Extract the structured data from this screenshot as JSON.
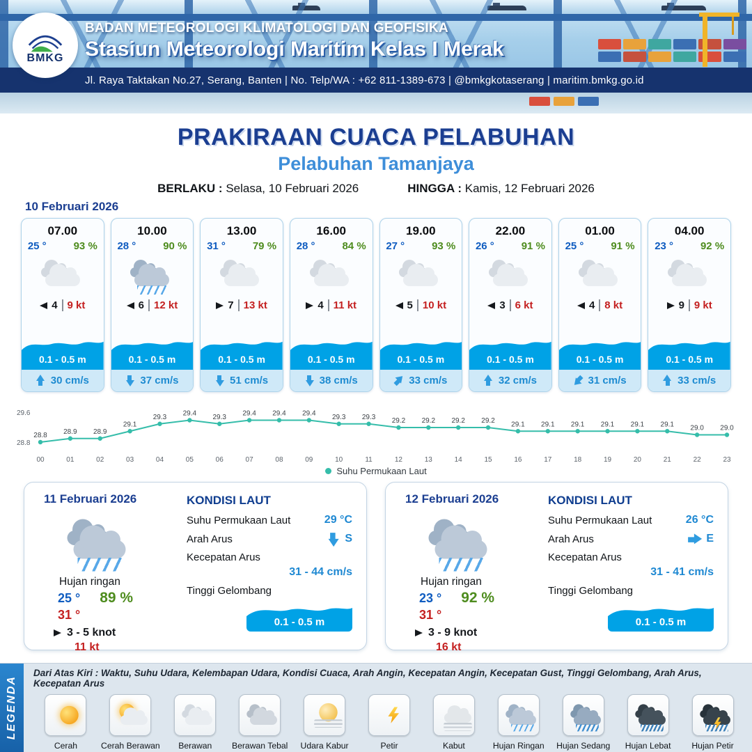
{
  "header": {
    "agency": "BADAN METEOROLOGI KLIMATOLOGI DAN GEOFISIKA",
    "station": "Stasiun Meteorologi Maritim Kelas I Merak",
    "address": "Jl. Raya Taktakan No.27, Serang, Banten | No. Telp/WA : +62 811-1389-673 | @bmkgkotaserang | maritim.bmkg.go.id",
    "logo_text": "BMKG"
  },
  "title": {
    "main": "PRAKIRAAN CUACA PELABUHAN",
    "subtitle": "Pelabuhan Tamanjaya",
    "valid_label": "BERLAKU :",
    "valid_value": "Selasa, 10 Februari 2026",
    "until_label": "HINGGA :",
    "until_value": "Kamis, 12 Februari 2026"
  },
  "forecast": {
    "date": "10 Februari 2026",
    "cards": [
      {
        "time": "07.00",
        "temp": "25 °",
        "rh": "93 %",
        "icon": "berawan",
        "wind_dir": "w",
        "wind": "4",
        "gust": "9 kt",
        "wave": "0.1 - 0.5 m",
        "cur_dir": "up",
        "current": "30 cm/s"
      },
      {
        "time": "10.00",
        "temp": "28 °",
        "rh": "90 %",
        "icon": "hujan-ringan",
        "wind_dir": "w",
        "wind": "6",
        "gust": "12 kt",
        "wave": "0.1 - 0.5 m",
        "cur_dir": "down",
        "current": "37 cm/s"
      },
      {
        "time": "13.00",
        "temp": "31 °",
        "rh": "79 %",
        "icon": "berawan",
        "wind_dir": "e",
        "wind": "7",
        "gust": "13 kt",
        "wave": "0.1 - 0.5 m",
        "cur_dir": "down",
        "current": "51 cm/s"
      },
      {
        "time": "16.00",
        "temp": "28 °",
        "rh": "84 %",
        "icon": "berawan",
        "wind_dir": "e",
        "wind": "4",
        "gust": "11 kt",
        "wave": "0.1 - 0.5 m",
        "cur_dir": "down",
        "current": "38 cm/s"
      },
      {
        "time": "19.00",
        "temp": "27 °",
        "rh": "93 %",
        "icon": "berawan",
        "wind_dir": "w",
        "wind": "5",
        "gust": "10 kt",
        "wave": "0.1 - 0.5 m",
        "cur_dir": "ne",
        "current": "33 cm/s"
      },
      {
        "time": "22.00",
        "temp": "26 °",
        "rh": "91 %",
        "icon": "berawan",
        "wind_dir": "w",
        "wind": "3",
        "gust": "6 kt",
        "wave": "0.1 - 0.5 m",
        "cur_dir": "up",
        "current": "32 cm/s"
      },
      {
        "time": "01.00",
        "temp": "25 °",
        "rh": "91 %",
        "icon": "berawan",
        "wind_dir": "w",
        "wind": "4",
        "gust": "8 kt",
        "wave": "0.1 - 0.5 m",
        "cur_dir": "sw",
        "current": "31 cm/s"
      },
      {
        "time": "04.00",
        "temp": "23 °",
        "rh": "92 %",
        "icon": "berawan",
        "wind_dir": "e",
        "wind": "9",
        "gust": "9 kt",
        "wave": "0.1 - 0.5 m",
        "cur_dir": "up",
        "current": "33 cm/s"
      }
    ]
  },
  "chart_data": {
    "type": "line",
    "title": "",
    "series_name": "Suhu Permukaan Laut",
    "x": [
      "00",
      "01",
      "02",
      "03",
      "04",
      "05",
      "06",
      "07",
      "08",
      "09",
      "10",
      "11",
      "12",
      "13",
      "14",
      "15",
      "16",
      "17",
      "18",
      "19",
      "20",
      "21",
      "22",
      "23"
    ],
    "values": [
      28.8,
      28.9,
      28.9,
      29.1,
      29.3,
      29.4,
      29.3,
      29.4,
      29.4,
      29.4,
      29.3,
      29.3,
      29.2,
      29.2,
      29.2,
      29.2,
      29.1,
      29.1,
      29.1,
      29.1,
      29.1,
      29.1,
      29.0,
      29.0
    ],
    "ylim": [
      28.8,
      29.6
    ],
    "line_color": "#35bdaa",
    "grid": false,
    "legend_position": "bottom"
  },
  "days": [
    {
      "date": "11 Februari 2026",
      "condition": "Hujan ringan",
      "icon": "hujan-ringan",
      "temp_min": "25 °",
      "temp_max": "31 °",
      "rh": "89 %",
      "wind_dir": "e",
      "wind": "3  - 5 knot",
      "gust": "11 kt",
      "sea": {
        "title": "KONDISI LAUT",
        "sst_label": "Suhu Permukaan Laut",
        "sst": "29 °C",
        "cur_dir_label": "Arah Arus",
        "cur_dir": "down",
        "cur_dir_text": "S",
        "cur_speed_label": "Kecepatan Arus",
        "cur_speed": "31 - 44 cm/s",
        "wave_label": "Tinggi Gelombang",
        "wave": "0.1 - 0.5 m"
      }
    },
    {
      "date": "12 Februari 2026",
      "condition": "Hujan ringan",
      "icon": "hujan-ringan",
      "temp_min": "23 °",
      "temp_max": "31 °",
      "rh": "92 %",
      "wind_dir": "e",
      "wind": "3  - 9 knot",
      "gust": "16 kt",
      "sea": {
        "title": "KONDISI LAUT",
        "sst_label": "Suhu Permukaan Laut",
        "sst": "26 °C",
        "cur_dir_label": "Arah Arus",
        "cur_dir": "right",
        "cur_dir_text": "E",
        "cur_speed_label": "Kecepatan Arus",
        "cur_speed": "31 - 41 cm/s",
        "wave_label": "Tinggi Gelombang",
        "wave": "0.1 - 0.5 m"
      }
    }
  ],
  "legend": {
    "label": "LEGENDA",
    "note": "Dari Atas Kiri : Waktu, Suhu Udara, Kelembapan Udara, Kondisi Cuaca, Arah Angin, Kecepatan Angin, Kecepatan Gust, Tinggi Gelombang, Arah Arus, Kecepatan Arus",
    "items": [
      {
        "label": "Cerah",
        "icon": "cerah"
      },
      {
        "label": "Cerah Berawan",
        "icon": "cerah-berawan"
      },
      {
        "label": "Berawan",
        "icon": "berawan"
      },
      {
        "label": "Berawan Tebal",
        "icon": "berawan-tebal"
      },
      {
        "label": "Udara Kabur",
        "icon": "udara-kabur"
      },
      {
        "label": "Petir",
        "icon": "petir"
      },
      {
        "label": "Kabut",
        "icon": "kabut"
      },
      {
        "label": "Hujan Ringan",
        "icon": "hujan-ringan"
      },
      {
        "label": "Hujan Sedang",
        "icon": "hujan-sedang"
      },
      {
        "label": "Hujan Lebat",
        "icon": "hujan-lebat"
      },
      {
        "label": "Hujan Petir",
        "icon": "hujan-petir"
      }
    ]
  }
}
